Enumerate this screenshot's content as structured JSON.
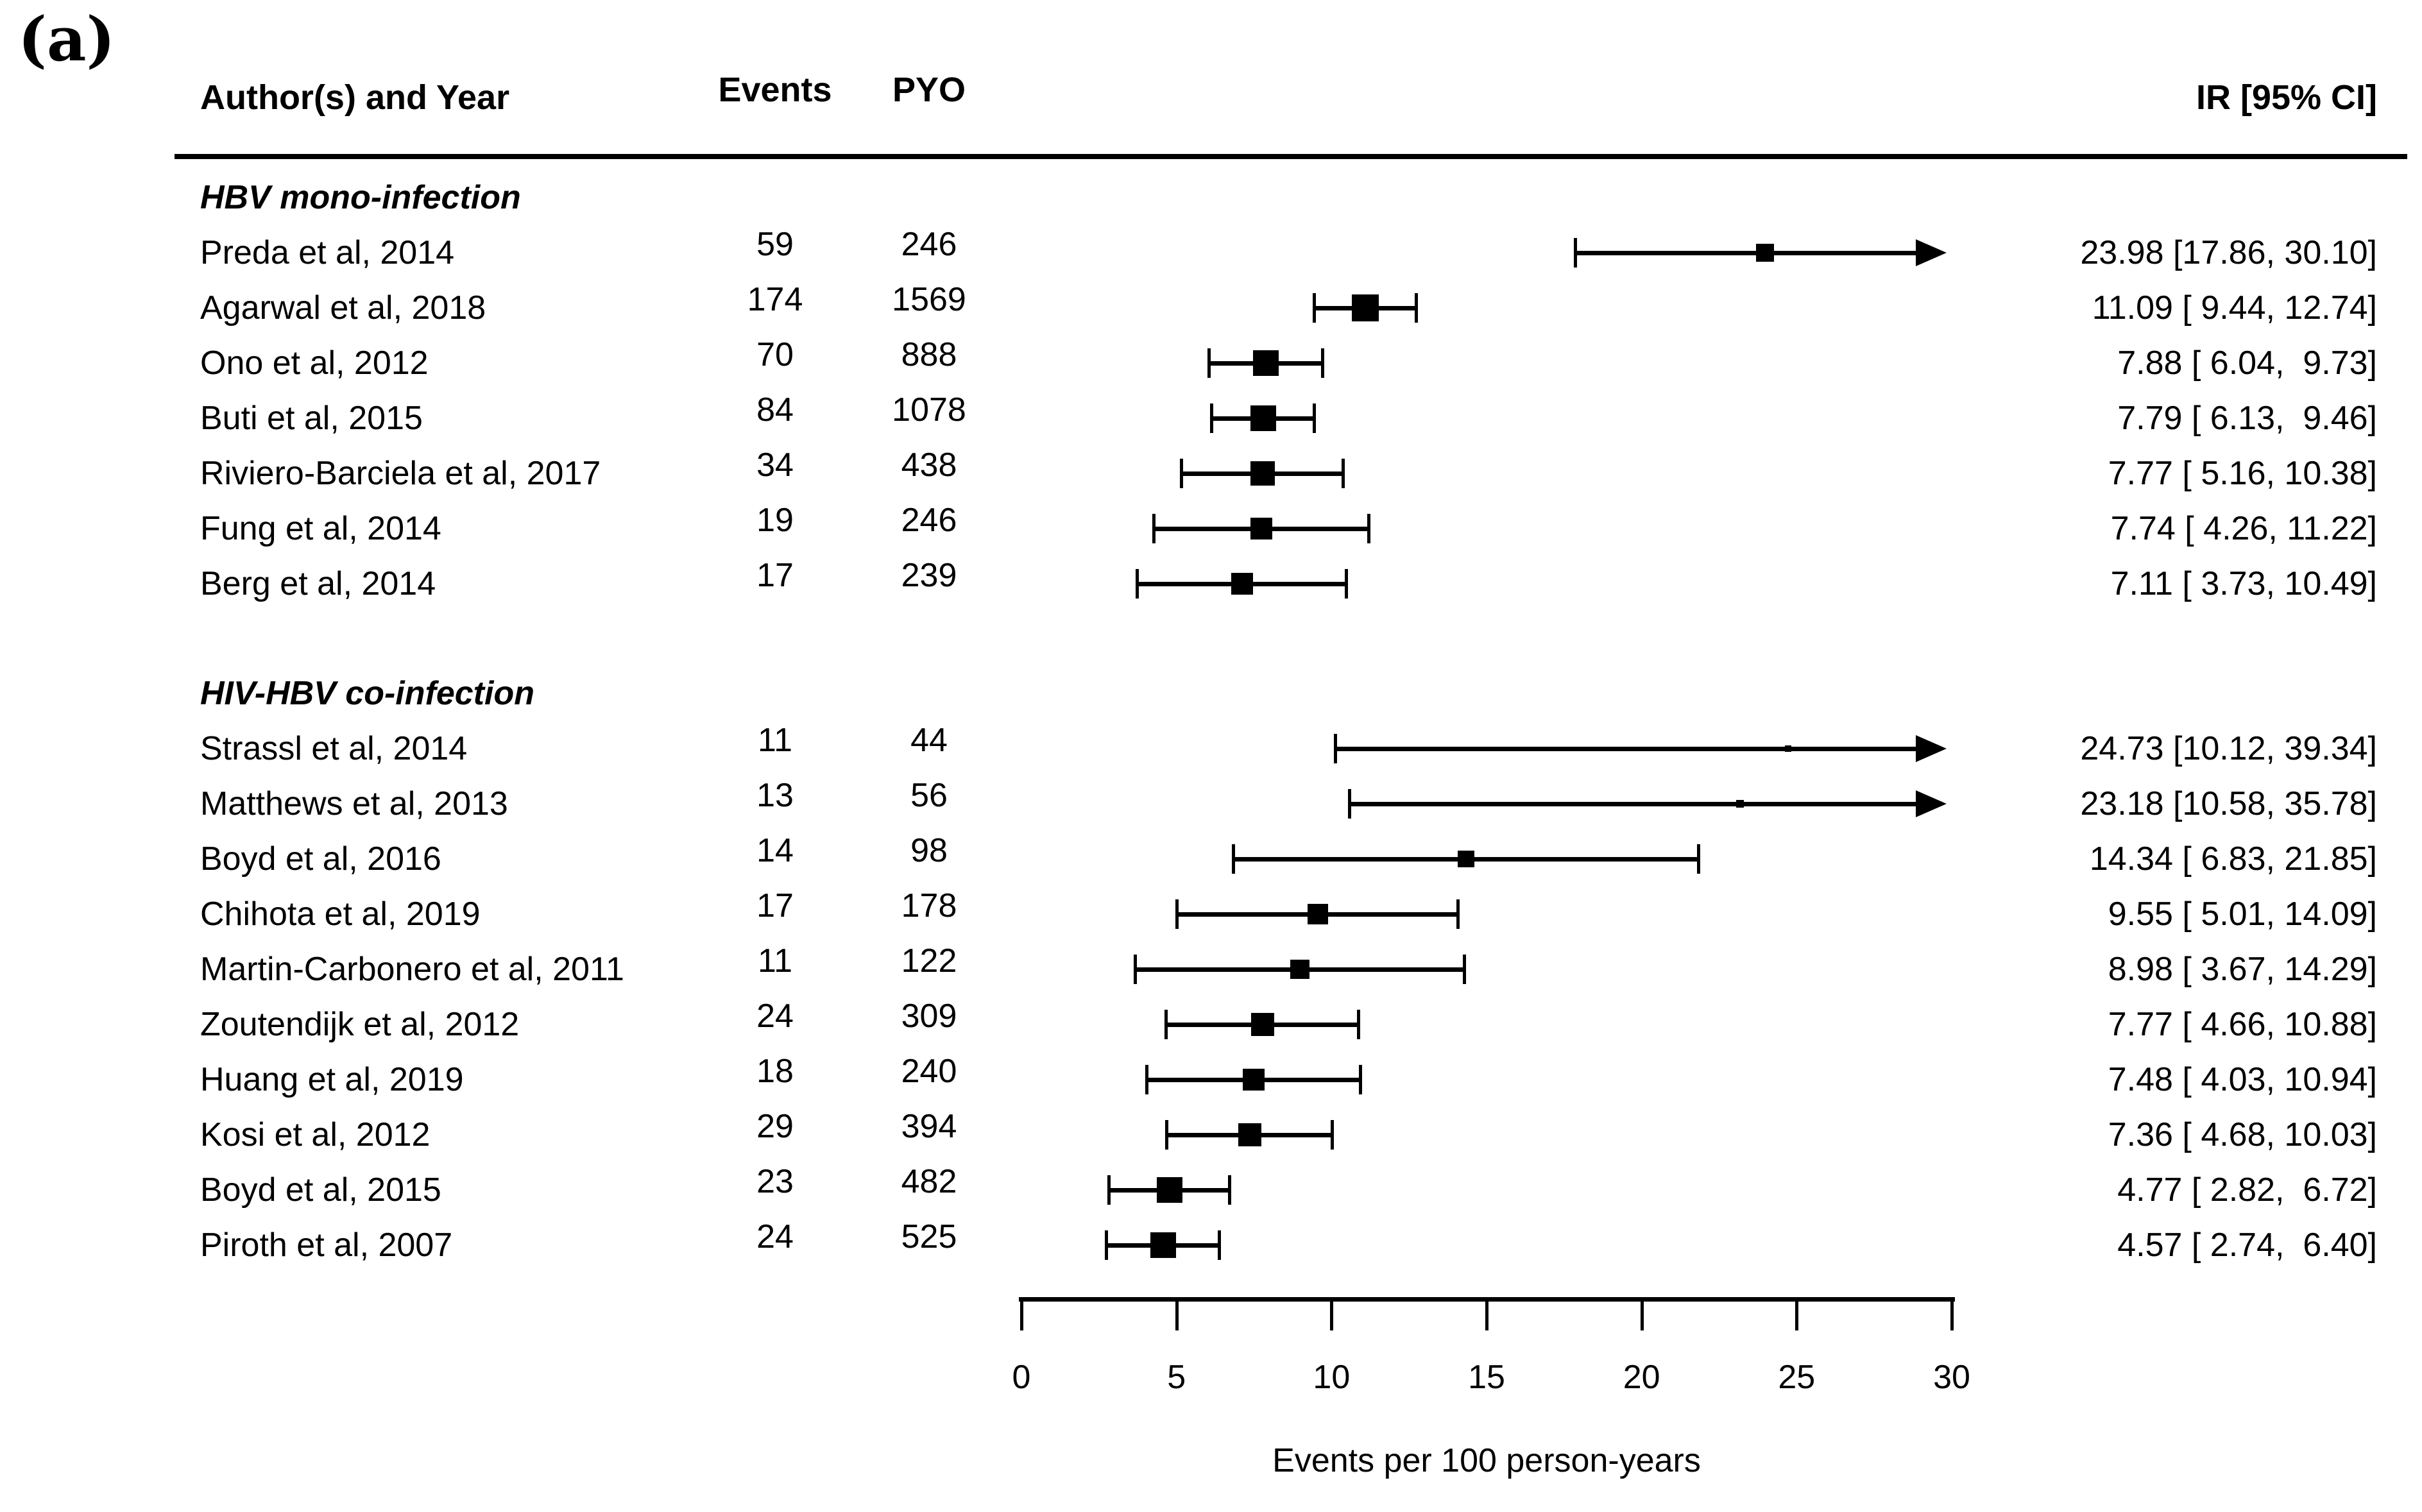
{
  "panel_label": "(a)",
  "colors": {
    "foreground": "#000000",
    "background": "#ffffff"
  },
  "columns": {
    "author": "Author(s) and Year",
    "events": "Events",
    "pyo": "PYO",
    "ir": "IR [95% CI]"
  },
  "chart_data": {
    "type": "forest",
    "title": "",
    "xlabel": "Events per 100 person-years",
    "xlim": [
      0,
      30
    ],
    "x_ticks": [
      0,
      5,
      10,
      15,
      20,
      25,
      30
    ],
    "marker_glyph": "black-square",
    "truncation_glyph": "right-arrow",
    "groups": [
      {
        "label": "HBV mono-infection",
        "studies": [
          {
            "author": "Preda et al, 2014",
            "events": "59",
            "pyo": "246",
            "ir": 23.98,
            "ci_low": 17.86,
            "ci_high": 30.1,
            "ir_label": "23.98 [17.86, 30.10]",
            "truncated": true,
            "marker_size": 28
          },
          {
            "author": "Agarwal et al, 2018",
            "events": "174",
            "pyo": "1569",
            "ir": 11.09,
            "ci_low": 9.44,
            "ci_high": 12.74,
            "ir_label": "11.09 [ 9.44, 12.74]",
            "truncated": false,
            "marker_size": 42
          },
          {
            "author": "Ono et al, 2012",
            "events": "70",
            "pyo": "888",
            "ir": 7.88,
            "ci_low": 6.04,
            "ci_high": 9.73,
            "ir_label": "7.88 [ 6.04,  9.73]",
            "truncated": false,
            "marker_size": 40
          },
          {
            "author": "Buti et al, 2015",
            "events": "84",
            "pyo": "1078",
            "ir": 7.79,
            "ci_low": 6.13,
            "ci_high": 9.46,
            "ir_label": "7.79 [ 6.13,  9.46]",
            "truncated": false,
            "marker_size": 40
          },
          {
            "author": "Riviero-Barciela et al, 2017",
            "events": "34",
            "pyo": "438",
            "ir": 7.77,
            "ci_low": 5.16,
            "ci_high": 10.38,
            "ir_label": "7.77 [ 5.16, 10.38]",
            "truncated": false,
            "marker_size": 38
          },
          {
            "author": "Fung et al, 2014",
            "events": "19",
            "pyo": "246",
            "ir": 7.74,
            "ci_low": 4.26,
            "ci_high": 11.22,
            "ir_label": "7.74 [ 4.26, 11.22]",
            "truncated": false,
            "marker_size": 34
          },
          {
            "author": "Berg et al, 2014",
            "events": "17",
            "pyo": "239",
            "ir": 7.11,
            "ci_low": 3.73,
            "ci_high": 10.49,
            "ir_label": "7.11 [ 3.73, 10.49]",
            "truncated": false,
            "marker_size": 34
          }
        ]
      },
      {
        "label": "HIV-HBV co-infection",
        "studies": [
          {
            "author": "Strassl et al, 2014",
            "events": "11",
            "pyo": "44",
            "ir": 24.73,
            "ci_low": 10.12,
            "ci_high": 39.34,
            "ir_label": "24.73 [10.12, 39.34]",
            "truncated": true,
            "marker_size": 10
          },
          {
            "author": "Matthews et al, 2013",
            "events": "13",
            "pyo": "56",
            "ir": 23.18,
            "ci_low": 10.58,
            "ci_high": 35.78,
            "ir_label": "23.18 [10.58, 35.78]",
            "truncated": true,
            "marker_size": 12
          },
          {
            "author": "Boyd et al, 2016",
            "events": "14",
            "pyo": "98",
            "ir": 14.34,
            "ci_low": 6.83,
            "ci_high": 21.85,
            "ir_label": "14.34 [ 6.83, 21.85]",
            "truncated": false,
            "marker_size": 26
          },
          {
            "author": "Chihota et al, 2019",
            "events": "17",
            "pyo": "178",
            "ir": 9.55,
            "ci_low": 5.01,
            "ci_high": 14.09,
            "ir_label": "9.55 [ 5.01, 14.09]",
            "truncated": false,
            "marker_size": 32
          },
          {
            "author": "Martin-Carbonero et al, 2011",
            "events": "11",
            "pyo": "122",
            "ir": 8.98,
            "ci_low": 3.67,
            "ci_high": 14.29,
            "ir_label": "8.98 [ 3.67, 14.29]",
            "truncated": false,
            "marker_size": 30
          },
          {
            "author": "Zoutendijk et al, 2012",
            "events": "24",
            "pyo": "309",
            "ir": 7.77,
            "ci_low": 4.66,
            "ci_high": 10.88,
            "ir_label": "7.77 [ 4.66, 10.88]",
            "truncated": false,
            "marker_size": 36
          },
          {
            "author": "Huang et al, 2019",
            "events": "18",
            "pyo": "240",
            "ir": 7.48,
            "ci_low": 4.03,
            "ci_high": 10.94,
            "ir_label": "7.48 [ 4.03, 10.94]",
            "truncated": false,
            "marker_size": 34
          },
          {
            "author": "Kosi et al, 2012",
            "events": "29",
            "pyo": "394",
            "ir": 7.36,
            "ci_low": 4.68,
            "ci_high": 10.03,
            "ir_label": "7.36 [ 4.68, 10.03]",
            "truncated": false,
            "marker_size": 36
          },
          {
            "author": "Boyd et al, 2015",
            "events": "23",
            "pyo": "482",
            "ir": 4.77,
            "ci_low": 2.82,
            "ci_high": 6.72,
            "ir_label": "4.77 [ 2.82,  6.72]",
            "truncated": false,
            "marker_size": 40
          },
          {
            "author": "Piroth et al, 2007",
            "events": "24",
            "pyo": "525",
            "ir": 4.57,
            "ci_low": 2.74,
            "ci_high": 6.4,
            "ir_label": "4.57 [ 2.74,  6.40]",
            "truncated": false,
            "marker_size": 40
          }
        ]
      }
    ]
  }
}
